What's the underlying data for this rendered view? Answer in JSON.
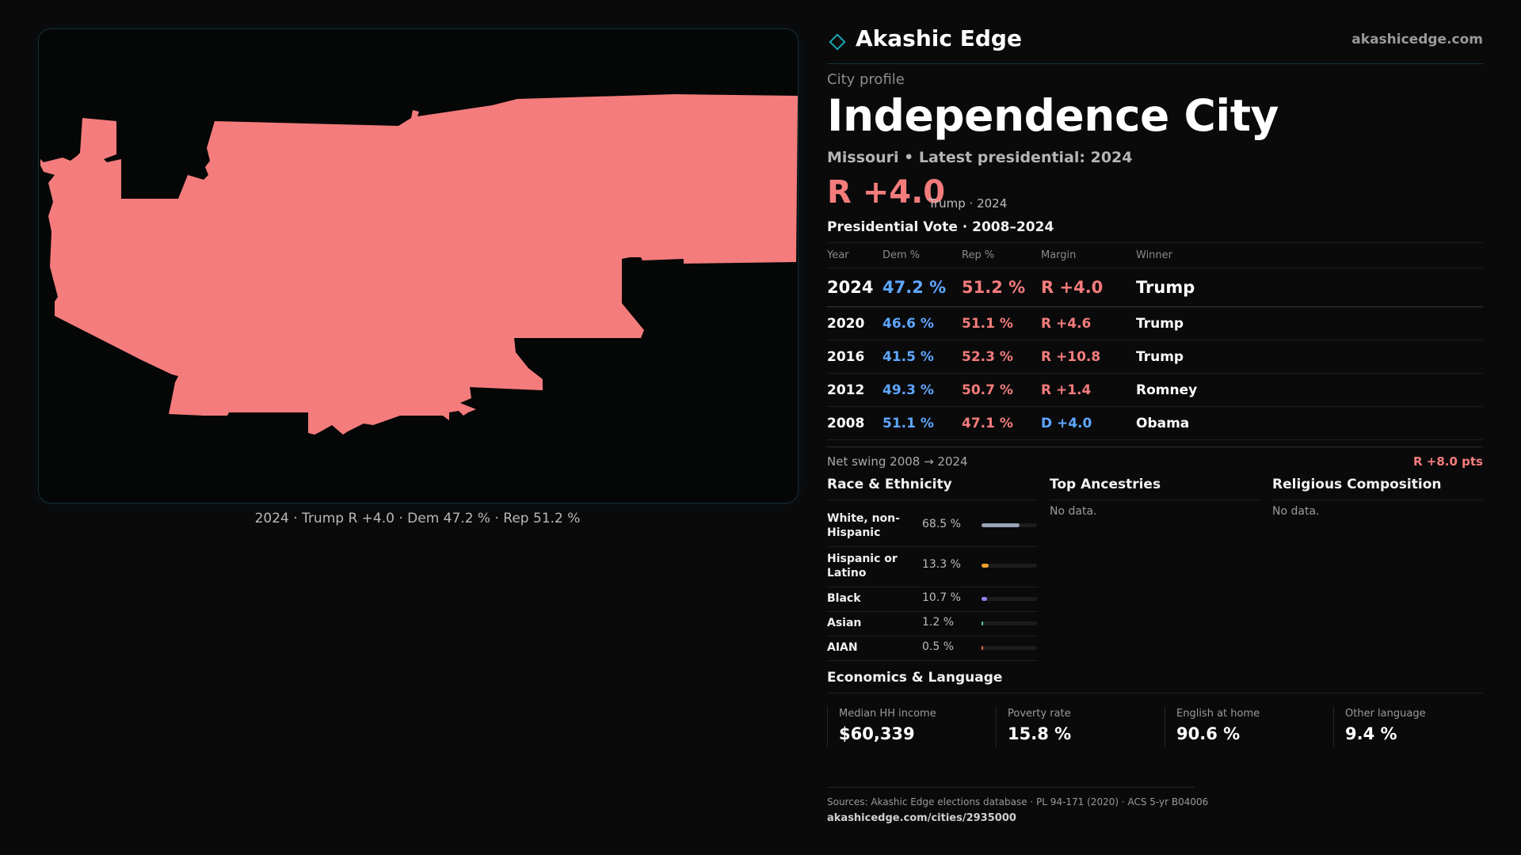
{
  "map": {
    "fill_color": "#f47c7c",
    "caption": "2024 · Trump R +4.0 · Dem 47.2 % · Rep 51.2 %"
  },
  "header": {
    "brand_name": "Akashic Edge",
    "brand_url": "akashicedge.com",
    "logo_icon": "diamond-outline-icon"
  },
  "profile": {
    "kicker": "City profile",
    "city_name": "Independence City",
    "subtitle": "Missouri • Latest presidential: 2024",
    "headline_margin": "R +4.0",
    "headline_note": "Trump · 2024"
  },
  "vote_section": {
    "title": "Presidential Vote · 2008–2024",
    "columns": [
      "Year",
      "Dem %",
      "Rep %",
      "Margin",
      "Winner"
    ],
    "rows": [
      {
        "year": "2024",
        "dem": "47.2 %",
        "rep": "51.2 %",
        "margin": "R +4.0",
        "winner": "Trump",
        "party": "R"
      },
      {
        "year": "2020",
        "dem": "46.6 %",
        "rep": "51.1 %",
        "margin": "R +4.6",
        "winner": "Trump",
        "party": "R"
      },
      {
        "year": "2016",
        "dem": "41.5 %",
        "rep": "52.3 %",
        "margin": "R +10.8",
        "winner": "Trump",
        "party": "R"
      },
      {
        "year": "2012",
        "dem": "49.3 %",
        "rep": "50.7 %",
        "margin": "R +1.4",
        "winner": "Romney",
        "party": "R"
      },
      {
        "year": "2008",
        "dem": "51.1 %",
        "rep": "47.1 %",
        "margin": "D +4.0",
        "winner": "Obama",
        "party": "D"
      }
    ],
    "swing_label": "Net swing 2008 → 2024",
    "swing_value": "R +8.0 pts"
  },
  "race": {
    "title": "Race & Ethnicity",
    "rows": [
      {
        "label": "White, non-Hispanic",
        "value": "68.5 %",
        "share": 0.685,
        "color": "#9aa3b5"
      },
      {
        "label": "Hispanic or Latino",
        "value": "13.3 %",
        "share": 0.133,
        "color": "#f0a030"
      },
      {
        "label": "Black",
        "value": "10.7 %",
        "share": 0.107,
        "color": "#9b7cf0"
      },
      {
        "label": "Asian",
        "value": "1.2 %",
        "share": 0.012,
        "color": "#4fd0c0"
      },
      {
        "label": "AIAN",
        "value": "0.5 %",
        "share": 0.005,
        "color": "#f07040"
      }
    ]
  },
  "ancestries": {
    "title": "Top Ancestries",
    "empty": "No data."
  },
  "religion": {
    "title": "Religious Composition",
    "empty": "No data."
  },
  "economics": {
    "title": "Economics & Language",
    "stats": [
      {
        "label": "Median HH income",
        "value": "$60,339"
      },
      {
        "label": "Poverty rate",
        "value": "15.8 %"
      },
      {
        "label": "English at home",
        "value": "90.6 %"
      },
      {
        "label": "Other language",
        "value": "9.4 %"
      }
    ]
  },
  "footer": {
    "sources": "Sources: Akashic Edge elections database · PL 94-171 (2020) · ACS 5-yr B04006",
    "url": "akashicedge.com/cities/2935000"
  }
}
